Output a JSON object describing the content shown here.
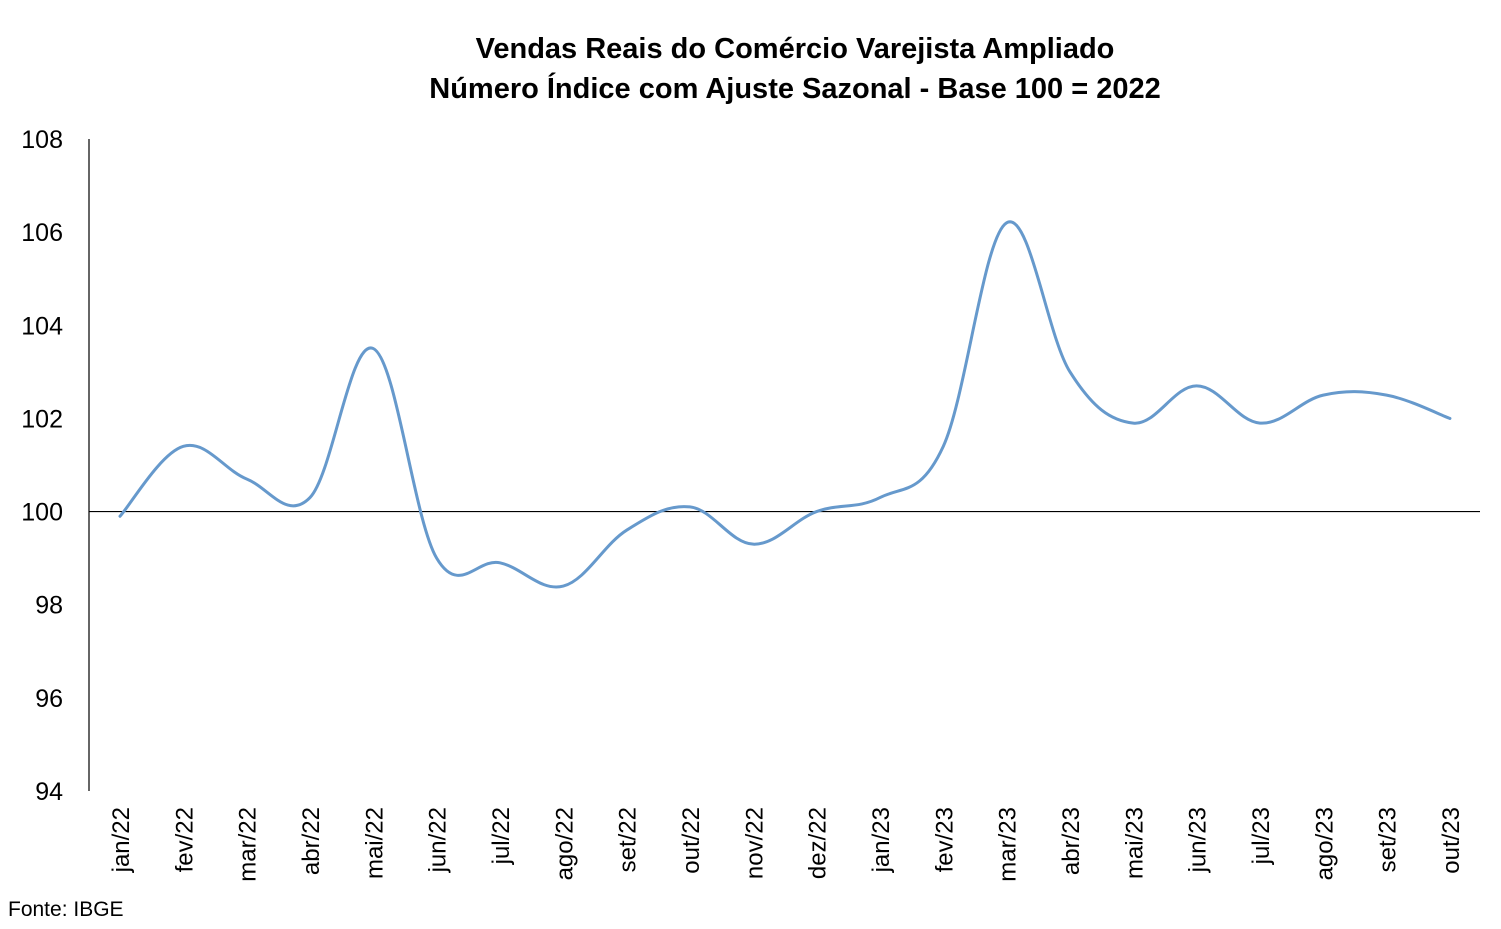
{
  "chart_data": {
    "type": "line",
    "title": "Vendas Reais do Comércio Varejista Ampliado",
    "subtitle": "Número Índice com Ajuste Sazonal - Base 100 = 2022",
    "xlabel": "",
    "ylabel": "",
    "categories": [
      "jan/22",
      "fev/22",
      "mar/22",
      "abr/22",
      "mai/22",
      "jun/22",
      "jul/22",
      "ago/22",
      "set/22",
      "out/22",
      "nov/22",
      "dez/22",
      "jan/23",
      "fev/23",
      "mar/23",
      "abr/23",
      "mai/23",
      "jun/23",
      "jul/23",
      "ago/23",
      "set/23",
      "out/23"
    ],
    "series": [
      {
        "values": [
          99.9,
          101.4,
          100.7,
          100.3,
          103.5,
          99.0,
          98.9,
          98.4,
          99.6,
          100.1,
          99.3,
          100.0,
          100.3,
          101.4,
          106.2,
          103.0,
          101.9,
          102.7,
          101.9,
          102.5,
          102.5,
          102.0
        ]
      }
    ],
    "ylim": [
      94,
      108
    ],
    "yticks": [
      "94",
      "96",
      "98",
      "100",
      "102",
      "104",
      "106",
      "108"
    ],
    "reference_line": 100,
    "grid": false,
    "legend": "none",
    "line_color": "#6699CC",
    "axis_color": "#000000"
  },
  "source": "Fonte: IBGE"
}
